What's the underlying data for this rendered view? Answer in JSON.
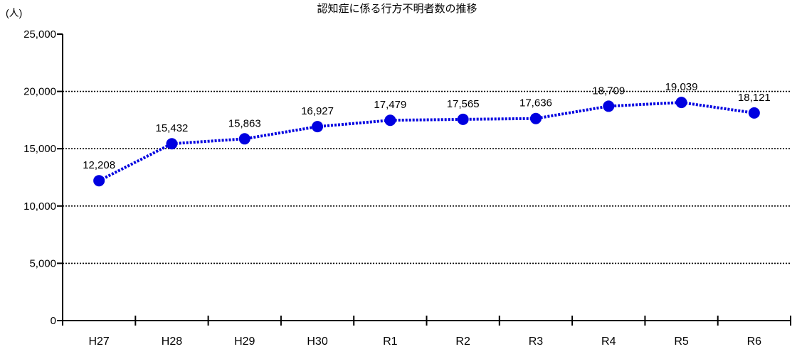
{
  "chart_data": {
    "type": "line",
    "title": "認知症に係る行方不明者数の推移",
    "unit_label": "(人)",
    "categories": [
      "H27",
      "H28",
      "H29",
      "H30",
      "R1",
      "R2",
      "R3",
      "R4",
      "R5",
      "R6"
    ],
    "series": [
      {
        "values": [
          12208,
          15432,
          15863,
          16927,
          17479,
          17565,
          17636,
          18709,
          19039,
          18121
        ],
        "labels": [
          "12,208",
          "15,432",
          "15,863",
          "16,927",
          "17,479",
          "17,565",
          "17,636",
          "18,709",
          "19,039",
          "18,121"
        ]
      }
    ],
    "ylim": [
      0,
      25000
    ],
    "yticks": [
      0,
      5000,
      10000,
      15000,
      20000,
      25000
    ],
    "ytick_labels": [
      "0",
      "5,000",
      "10,000",
      "15,000",
      "20,000",
      "25,000"
    ],
    "grid": "horizontal dotted",
    "colors": {
      "series": "#0000e0",
      "axis": "#000000",
      "grid": "#000000"
    }
  }
}
